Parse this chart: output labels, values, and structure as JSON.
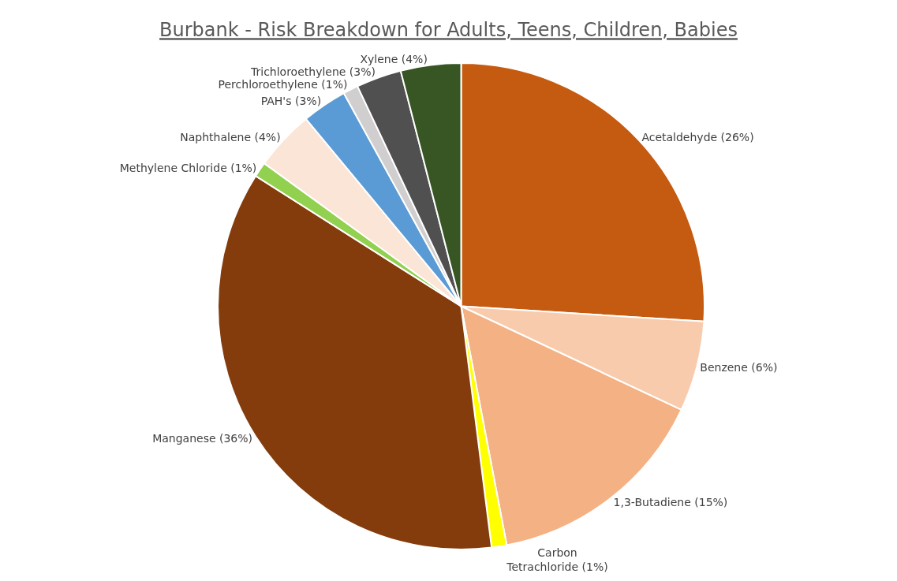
{
  "chart_data": {
    "type": "pie",
    "title": "Burbank - Risk Breakdown for Adults, Teens, Children, Babies",
    "categories": [
      "Acetaldehyde (26%)",
      "Benzene (6%)",
      "1,3-Butadiene (15%)",
      "Carbon Tetrachloride (1%)",
      "Manganese (36%)",
      "Methylene Chloride (1%)",
      "Naphthalene (4%)",
      "PAH's (3%)",
      "Perchloroethylene (1%)",
      "Trichloroethylene (3%)",
      "Xylene (4%)"
    ],
    "values": [
      26,
      6,
      15,
      1,
      36,
      1,
      4,
      3,
      1,
      3,
      4
    ],
    "colors": [
      "#c55a11",
      "#f8cbad",
      "#f4b183",
      "#ffff00",
      "#843c0c",
      "#92d050",
      "#fbe5d6",
      "#5b9bd5",
      "#d0cece",
      "#505050",
      "#375623"
    ],
    "legend": false
  }
}
